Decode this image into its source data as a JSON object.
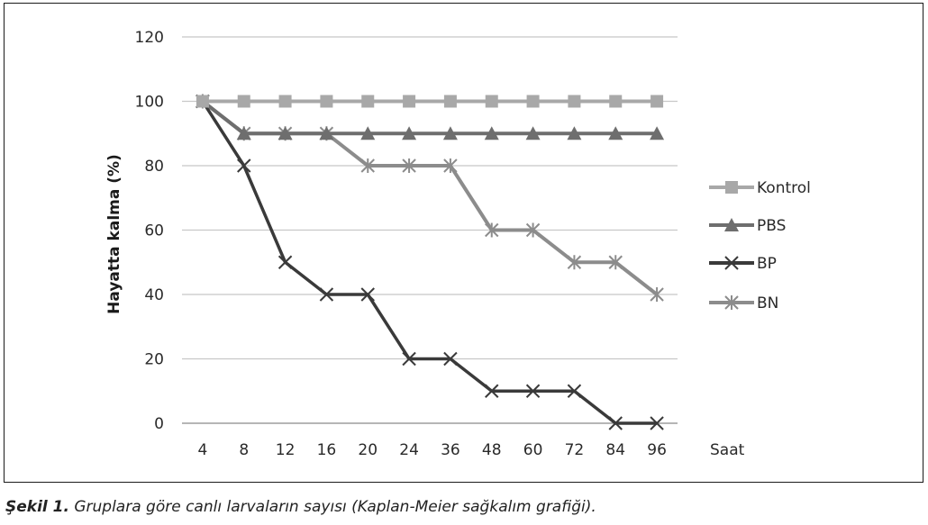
{
  "chart_data": {
    "type": "line",
    "title": "",
    "ylabel": "Hayatta kalma (%)",
    "xlabel": "Saat",
    "categories": [
      "4",
      "8",
      "12",
      "16",
      "20",
      "24",
      "36",
      "48",
      "60",
      "72",
      "84",
      "96"
    ],
    "ylim": [
      0,
      120
    ],
    "yticks": [
      0,
      20,
      40,
      60,
      80,
      100,
      120
    ],
    "grid": "horizontal",
    "legend_position": "right",
    "series": [
      {
        "name": "Kontrol",
        "marker": "square",
        "color": "#a8a8a8",
        "values": [
          100,
          100,
          100,
          100,
          100,
          100,
          100,
          100,
          100,
          100,
          100,
          100
        ]
      },
      {
        "name": "PBS",
        "marker": "triangle",
        "color": "#6e6e6e",
        "values": [
          100,
          90,
          90,
          90,
          90,
          90,
          90,
          90,
          90,
          90,
          90,
          90
        ]
      },
      {
        "name": "BP",
        "marker": "x",
        "color": "#3a3a3a",
        "values": [
          100,
          80,
          50,
          40,
          40,
          20,
          20,
          10,
          10,
          10,
          0,
          0
        ]
      },
      {
        "name": "BN",
        "marker": "star",
        "color": "#8c8c8c",
        "values": [
          100,
          90,
          90,
          90,
          80,
          80,
          80,
          60,
          60,
          50,
          50,
          40
        ]
      }
    ]
  },
  "caption": {
    "label": "Şekil 1.",
    "text": " Gruplara göre canlı larvaların sayısı (Kaplan-Meier sağkalım grafiği)."
  }
}
